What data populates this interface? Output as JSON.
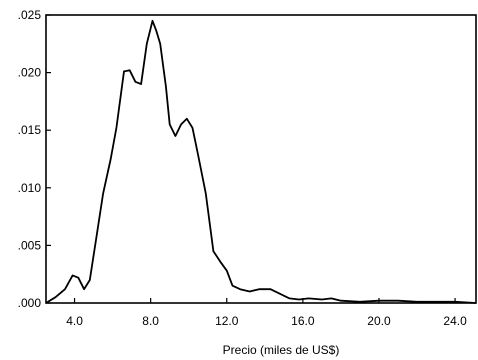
{
  "chart_data": {
    "type": "line",
    "title": "",
    "xlabel": "Precio (miles de US$)",
    "ylabel": "",
    "xlim": [
      2.5,
      25.1
    ],
    "ylim": [
      0,
      0.025
    ],
    "grid": false,
    "x_ticks": [
      4,
      8,
      12,
      16,
      20,
      24
    ],
    "x_tick_labels": [
      "4.0",
      "8.0",
      "12.0",
      "16.0",
      "20.0",
      "24.0"
    ],
    "y_ticks": [
      0,
      0.005,
      0.01,
      0.015,
      0.02,
      0.025
    ],
    "y_tick_labels": [
      ".000",
      ".005",
      ".010",
      ".015",
      ".020",
      ".025"
    ],
    "series": [
      {
        "x": [
          2.5,
          3.0,
          3.5,
          3.9,
          4.2,
          4.5,
          4.8,
          5.1,
          5.5,
          5.9,
          6.2,
          6.6,
          6.9,
          7.2,
          7.5,
          7.8,
          8.1,
          8.3,
          8.5,
          8.8,
          9.0,
          9.3,
          9.6,
          9.9,
          10.2,
          10.5,
          10.9,
          11.3,
          11.7,
          12.0,
          12.3,
          12.7,
          13.2,
          13.7,
          14.3,
          14.8,
          15.3,
          15.8,
          16.3,
          17.0,
          17.5,
          18.0,
          19.0,
          20.0,
          21.0,
          22.0,
          23.0,
          24.0,
          25.1
        ],
        "y": [
          0.0,
          0.0005,
          0.0012,
          0.0024,
          0.0022,
          0.0012,
          0.002,
          0.0052,
          0.0095,
          0.0125,
          0.0152,
          0.0201,
          0.0202,
          0.0192,
          0.019,
          0.0225,
          0.0245,
          0.0236,
          0.0225,
          0.0188,
          0.0155,
          0.0145,
          0.0155,
          0.016,
          0.0152,
          0.0128,
          0.0095,
          0.0045,
          0.0035,
          0.0028,
          0.0015,
          0.0012,
          0.001,
          0.0012,
          0.0012,
          0.0008,
          0.0004,
          0.0003,
          0.0004,
          0.0003,
          0.0004,
          0.0002,
          0.0001,
          0.0002,
          0.0002,
          0.0001,
          0.0001,
          0.0001,
          0.0
        ]
      }
    ]
  }
}
